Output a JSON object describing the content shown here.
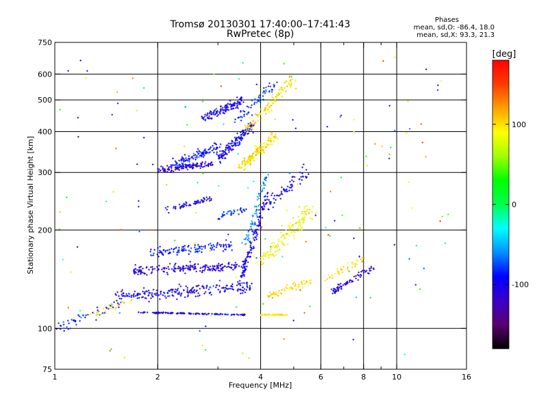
{
  "chart_data": {
    "type": "scatter",
    "title": "Tromsø 20130301 17:40:00–17:41:43",
    "subtitle": "RwPretec (8p)",
    "xlabel": "Frequency [MHz]",
    "ylabel": "Stationary phase Virtual Height [km]",
    "x_scale": "log",
    "y_scale": "log",
    "xlim": [
      1,
      16
    ],
    "ylim": [
      75,
      750
    ],
    "x_ticks": [
      1,
      2,
      4,
      6,
      8,
      10,
      16
    ],
    "x_tick_labels": [
      "1",
      "2",
      "4",
      "6",
      "8",
      "10",
      "16"
    ],
    "x_minor_ticks": [
      3,
      5,
      7,
      9
    ],
    "y_ticks": [
      75,
      100,
      200,
      300,
      400,
      500,
      600,
      750
    ],
    "y_tick_labels": [
      "75",
      "100",
      "200",
      "300",
      "400",
      "500",
      "600",
      "750"
    ],
    "grid_x": [
      2,
      4,
      6,
      8,
      10
    ],
    "grid_y": [
      100,
      200,
      300,
      400,
      500,
      600
    ],
    "grid": true,
    "stats": {
      "heading": "Phases",
      "line_o": "mean, sd,O: -86.4, 18.0",
      "line_x": "mean, sd,X:  93.3, 21.3"
    },
    "colorbar": {
      "label": "[deg]",
      "range": [
        -180,
        180
      ],
      "ticks": [
        100,
        0,
        -100
      ],
      "tick_labels": [
        "100",
        "0",
        "-100"
      ],
      "colormap": [
        "#000000",
        "#5a0070",
        "#3a00c8",
        "#0000ff",
        "#0090ff",
        "#00ffff",
        "#00ff50",
        "#00ff00",
        "#a0ff00",
        "#ffff00",
        "#ffa000",
        "#ff3c00",
        "#ff0000"
      ]
    },
    "traces": [
      {
        "x": [
          1.75,
          3.6
        ],
        "y": [
          112,
          110
        ],
        "phase": -100,
        "n": 120,
        "spread": 0.0,
        "vspread": 0.006
      },
      {
        "x": [
          4.0,
          4.8
        ],
        "y": [
          110,
          110
        ],
        "phase": 95,
        "n": 50,
        "spread": 0.0,
        "vspread": 0.006
      },
      {
        "x": [
          1.0,
          1.6
        ],
        "y": [
          100,
          120
        ],
        "phase": -90,
        "n": 50,
        "spread": 0.05,
        "vspread": 0.05
      },
      {
        "x": [
          1.3,
          1.7
        ],
        "y": [
          110,
          122
        ],
        "phase": 100,
        "n": 25,
        "spread": 0.05,
        "vspread": 0.03
      },
      {
        "x": [
          1.5,
          3.8
        ],
        "y": [
          125,
          135
        ],
        "phase": -100,
        "n": 220,
        "spread": 0.0,
        "vspread": 0.06
      },
      {
        "x": [
          1.7,
          3.6
        ],
        "y": [
          150,
          155
        ],
        "phase": -110,
        "n": 200,
        "spread": 0.0,
        "vspread": 0.05
      },
      {
        "x": [
          1.9,
          3.3
        ],
        "y": [
          170,
          180
        ],
        "phase": -90,
        "n": 120,
        "spread": 0.0,
        "vspread": 0.05
      },
      {
        "x": [
          3.5,
          4.2
        ],
        "y": [
          140,
          260
        ],
        "phase": -100,
        "n": 120,
        "spread": 0.03,
        "vspread": 0.04
      },
      {
        "x": [
          4.0,
          5.6
        ],
        "y": [
          160,
          230
        ],
        "phase": 90,
        "n": 130,
        "spread": 0.06,
        "vspread": 0.08
      },
      {
        "x": [
          4.2,
          5.6
        ],
        "y": [
          125,
          140
        ],
        "phase": 100,
        "n": 60,
        "spread": 0.03,
        "vspread": 0.04
      },
      {
        "x": [
          6.5,
          8.6
        ],
        "y": [
          130,
          155
        ],
        "phase": -110,
        "n": 70,
        "spread": 0.04,
        "vspread": 0.03
      },
      {
        "x": [
          6.2,
          8.0
        ],
        "y": [
          140,
          165
        ],
        "phase": 100,
        "n": 40,
        "spread": 0.05,
        "vspread": 0.04
      },
      {
        "x": [
          2.1,
          2.9
        ],
        "y": [
          230,
          250
        ],
        "phase": -100,
        "n": 60,
        "spread": 0.0,
        "vspread": 0.03
      },
      {
        "x": [
          3.0,
          3.6
        ],
        "y": [
          220,
          230
        ],
        "phase": -80,
        "n": 35,
        "spread": 0.0,
        "vspread": 0.03
      },
      {
        "x": [
          4.0,
          5.5
        ],
        "y": [
          230,
          300
        ],
        "phase": -100,
        "n": 70,
        "spread": 0.05,
        "vspread": 0.07
      },
      {
        "x": [
          2.0,
          2.9
        ],
        "y": [
          305,
          320
        ],
        "phase": -110,
        "n": 130,
        "spread": 0.0,
        "vspread": 0.03
      },
      {
        "x": [
          2.2,
          3.0
        ],
        "y": [
          315,
          360
        ],
        "phase": -90,
        "n": 110,
        "spread": 0.03,
        "vspread": 0.05
      },
      {
        "x": [
          3.0,
          3.8
        ],
        "y": [
          330,
          420
        ],
        "phase": -100,
        "n": 140,
        "spread": 0.03,
        "vspread": 0.05
      },
      {
        "x": [
          3.5,
          4.4
        ],
        "y": [
          310,
          390
        ],
        "phase": 100,
        "n": 140,
        "spread": 0.04,
        "vspread": 0.05
      },
      {
        "x": [
          2.7,
          3.6
        ],
        "y": [
          440,
          500
        ],
        "phase": -100,
        "n": 120,
        "spread": 0.03,
        "vspread": 0.05
      },
      {
        "x": [
          3.6,
          5.0
        ],
        "y": [
          400,
          580
        ],
        "phase": 100,
        "n": 100,
        "spread": 0.05,
        "vspread": 0.06
      },
      {
        "x": [
          3.4,
          4.4
        ],
        "y": [
          430,
          560
        ],
        "phase": -80,
        "n": 60,
        "spread": 0.04,
        "vspread": 0.05
      },
      {
        "x": [
          3.6,
          4.2
        ],
        "y": [
          180,
          300
        ],
        "phase": -60,
        "n": 60,
        "spread": 0.03,
        "vspread": 0.05
      },
      {
        "x": [
          1.0,
          15.0
        ],
        "y": [
          80,
          700
        ],
        "phase": 0,
        "n": 160,
        "spread": 0.2,
        "vspread": 0.2
      }
    ]
  }
}
